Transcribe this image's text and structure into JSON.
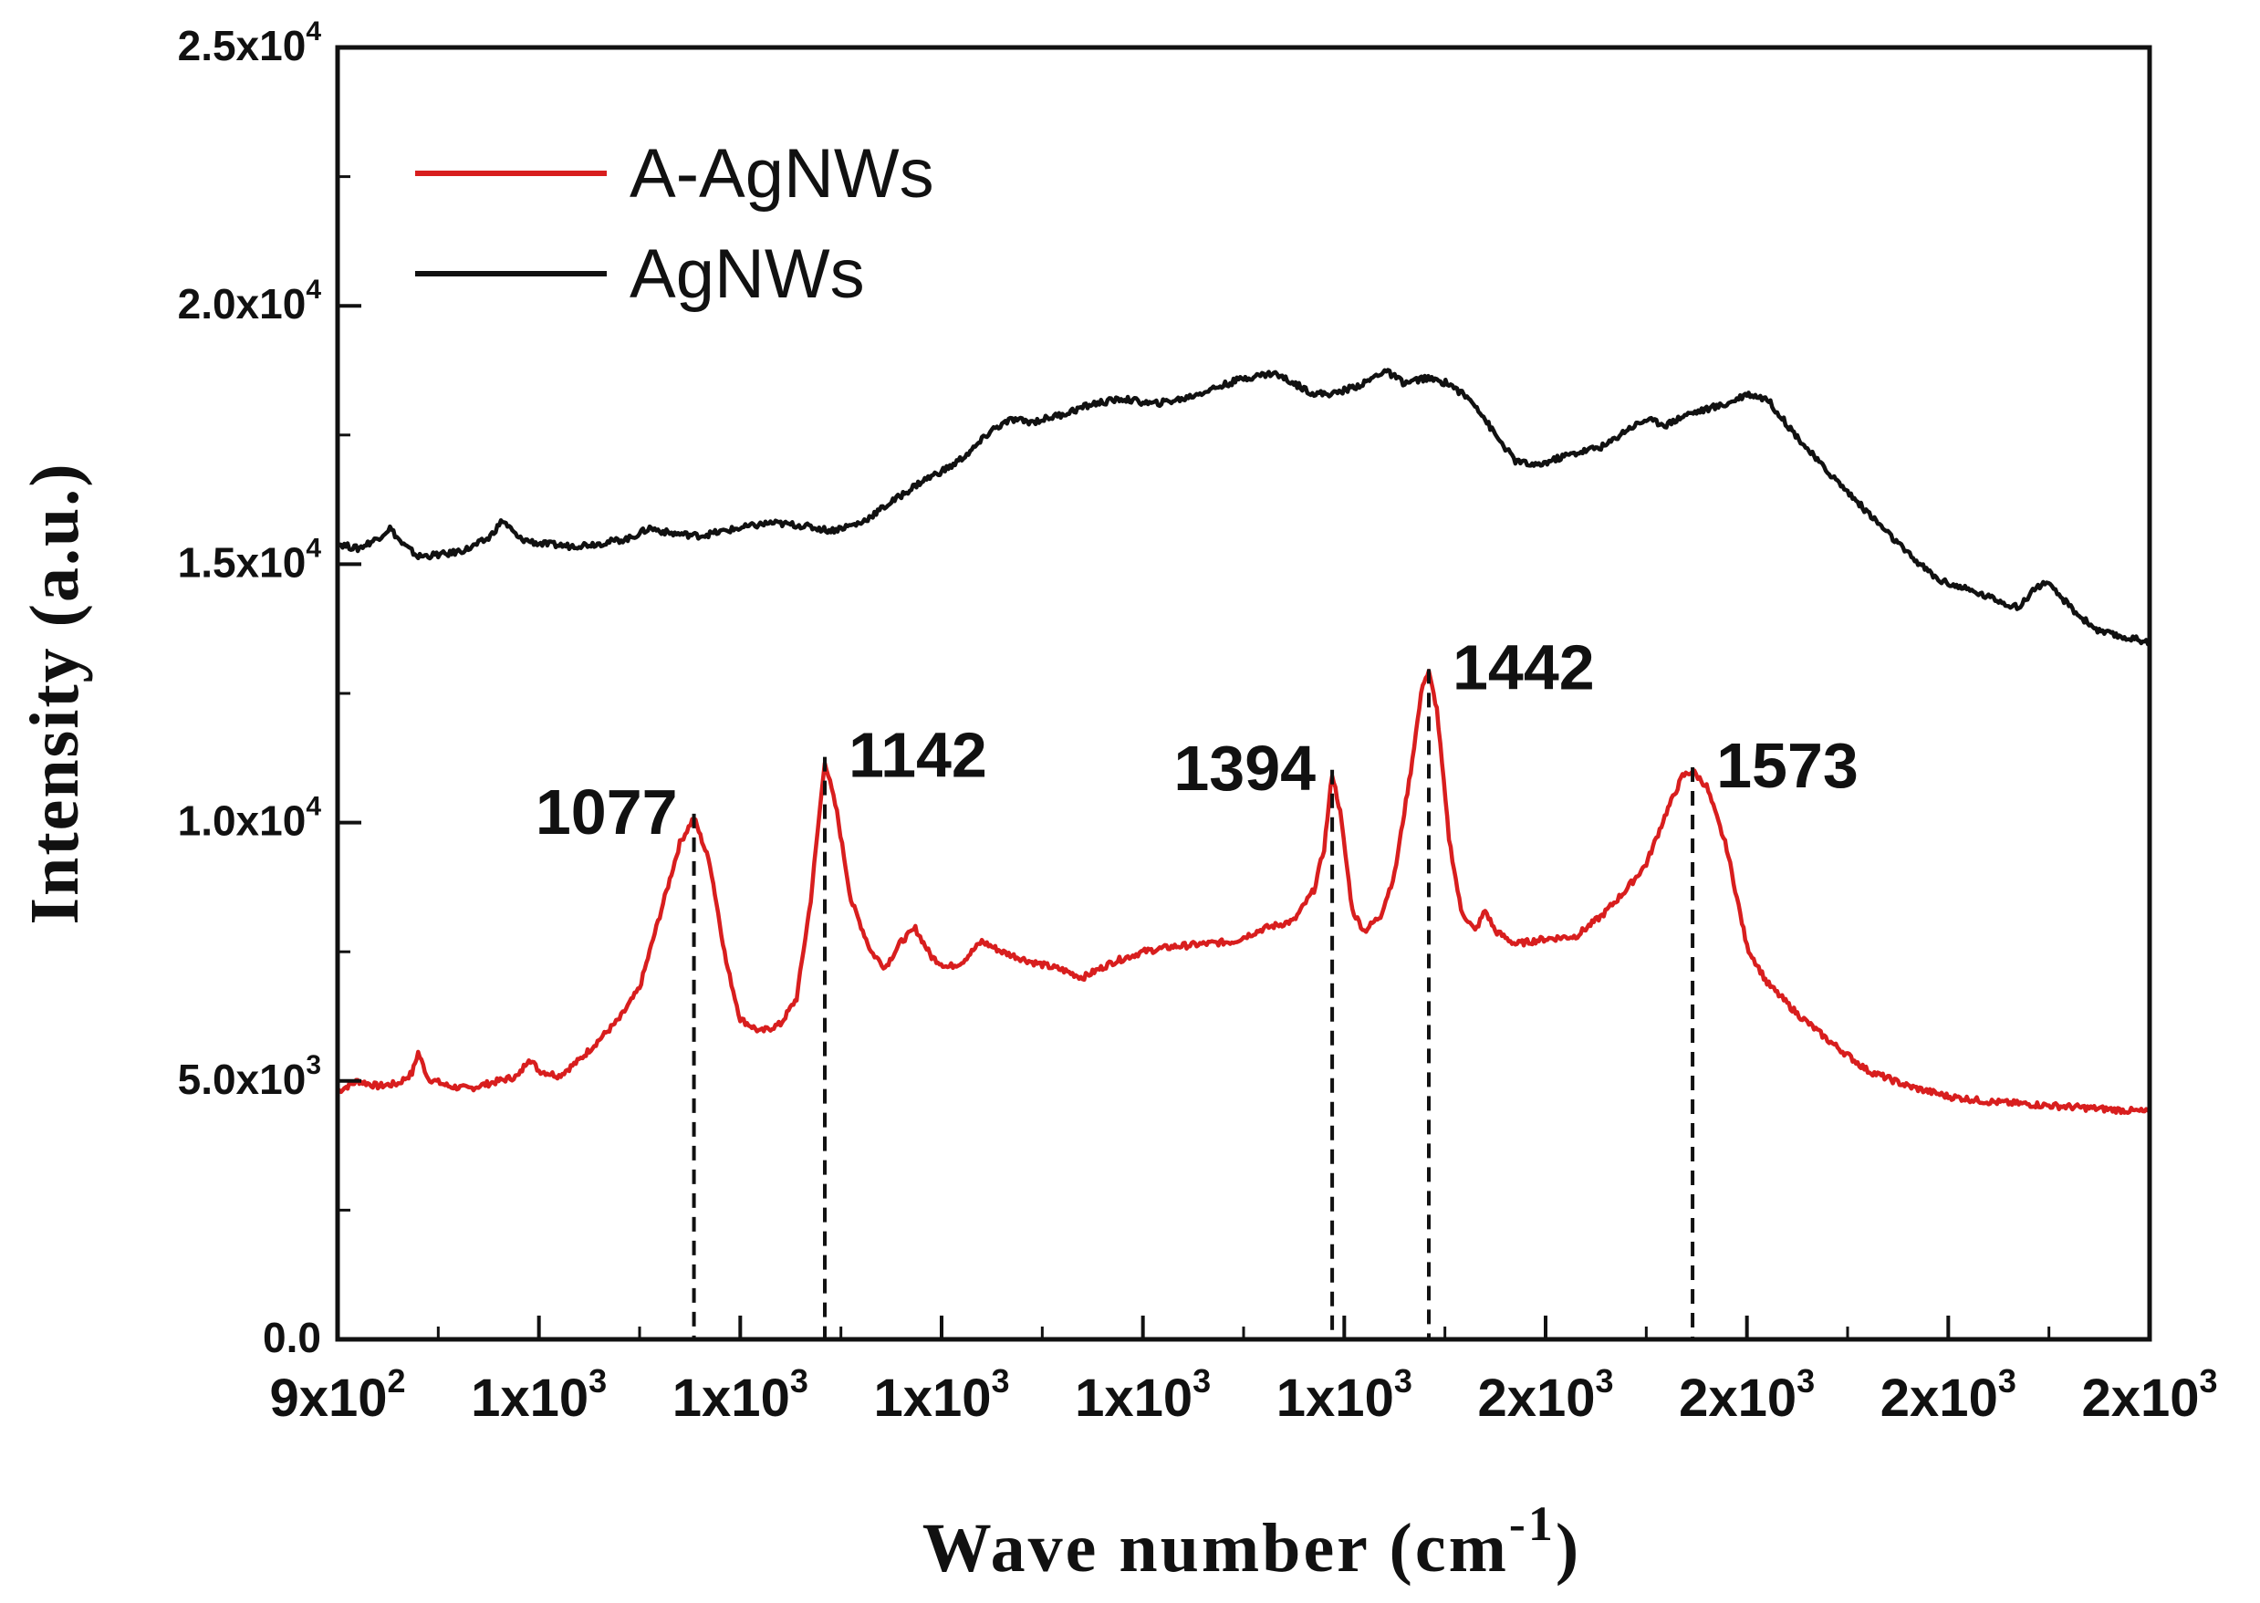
{
  "chart_data": {
    "type": "line",
    "xlabel": "Wave number (cm",
    "xlabel_sup": "-1",
    "xlabel_close": ")",
    "ylabel": "Intensity (a.u.)",
    "xlim": [
      900,
      1800
    ],
    "ylim": [
      0,
      25000
    ],
    "x_ticks": [
      {
        "value": 900,
        "label": "9x10",
        "exp": "2"
      },
      {
        "value": 1000,
        "label": "1x10",
        "exp": "3"
      },
      {
        "value": 1100,
        "label": "1x10",
        "exp": "3"
      },
      {
        "value": 1200,
        "label": "1x10",
        "exp": "3"
      },
      {
        "value": 1300,
        "label": "1x10",
        "exp": "3"
      },
      {
        "value": 1400,
        "label": "1x10",
        "exp": "3"
      },
      {
        "value": 1500,
        "label": "2x10",
        "exp": "3"
      },
      {
        "value": 1600,
        "label": "2x10",
        "exp": "3"
      },
      {
        "value": 1700,
        "label": "2x10",
        "exp": "3"
      },
      {
        "value": 1800,
        "label": "2x10",
        "exp": "3"
      }
    ],
    "y_ticks": [
      {
        "value": 0,
        "label": "0.0",
        "exp": ""
      },
      {
        "value": 5000,
        "label": "5.0x10",
        "exp": "3"
      },
      {
        "value": 10000,
        "label": "1.0x10",
        "exp": "4"
      },
      {
        "value": 15000,
        "label": "1.5x10",
        "exp": "4"
      },
      {
        "value": 20000,
        "label": "2.0x10",
        "exp": "4"
      },
      {
        "value": 25000,
        "label": "2.5x10",
        "exp": "4"
      }
    ],
    "legend_position": "top-left",
    "series": [
      {
        "name": "A-AgNWs",
        "color": "#d81e1e",
        "points": [
          [
            900,
            4800
          ],
          [
            910,
            5000
          ],
          [
            920,
            4900
          ],
          [
            930,
            4950
          ],
          [
            937,
            5150
          ],
          [
            940,
            5550
          ],
          [
            945,
            5050
          ],
          [
            955,
            4900
          ],
          [
            965,
            4850
          ],
          [
            975,
            4950
          ],
          [
            990,
            5100
          ],
          [
            995,
            5450
          ],
          [
            1000,
            5200
          ],
          [
            1010,
            5100
          ],
          [
            1020,
            5400
          ],
          [
            1030,
            5800
          ],
          [
            1040,
            6200
          ],
          [
            1050,
            6800
          ],
          [
            1060,
            8200
          ],
          [
            1070,
            9600
          ],
          [
            1077,
            10100
          ],
          [
            1085,
            9200
          ],
          [
            1093,
            7300
          ],
          [
            1100,
            6200
          ],
          [
            1110,
            5950
          ],
          [
            1120,
            6100
          ],
          [
            1128,
            6600
          ],
          [
            1135,
            8500
          ],
          [
            1142,
            11200
          ],
          [
            1148,
            10200
          ],
          [
            1155,
            8500
          ],
          [
            1165,
            7500
          ],
          [
            1172,
            7200
          ],
          [
            1180,
            7700
          ],
          [
            1187,
            7950
          ],
          [
            1195,
            7400
          ],
          [
            1203,
            7200
          ],
          [
            1210,
            7300
          ],
          [
            1220,
            7700
          ],
          [
            1230,
            7500
          ],
          [
            1245,
            7300
          ],
          [
            1260,
            7150
          ],
          [
            1270,
            7000
          ],
          [
            1285,
            7300
          ],
          [
            1300,
            7500
          ],
          [
            1315,
            7600
          ],
          [
            1330,
            7650
          ],
          [
            1345,
            7700
          ],
          [
            1360,
            7950
          ],
          [
            1375,
            8100
          ],
          [
            1385,
            8700
          ],
          [
            1390,
            9500
          ],
          [
            1394,
            10950
          ],
          [
            1398,
            10200
          ],
          [
            1404,
            8300
          ],
          [
            1410,
            7900
          ],
          [
            1418,
            8200
          ],
          [
            1425,
            9000
          ],
          [
            1433,
            11000
          ],
          [
            1439,
            12700
          ],
          [
            1442,
            12900
          ],
          [
            1446,
            12200
          ],
          [
            1452,
            9700
          ],
          [
            1458,
            8300
          ],
          [
            1465,
            7900
          ],
          [
            1470,
            8300
          ],
          [
            1475,
            7900
          ],
          [
            1485,
            7650
          ],
          [
            1500,
            7750
          ],
          [
            1515,
            7800
          ],
          [
            1528,
            8200
          ],
          [
            1540,
            8700
          ],
          [
            1550,
            9200
          ],
          [
            1560,
            10200
          ],
          [
            1568,
            10900
          ],
          [
            1573,
            11000
          ],
          [
            1580,
            10700
          ],
          [
            1590,
            9500
          ],
          [
            1600,
            7600
          ],
          [
            1610,
            6900
          ],
          [
            1625,
            6300
          ],
          [
            1640,
            5800
          ],
          [
            1660,
            5200
          ],
          [
            1680,
            4900
          ],
          [
            1700,
            4700
          ],
          [
            1720,
            4600
          ],
          [
            1740,
            4550
          ],
          [
            1760,
            4500
          ],
          [
            1780,
            4450
          ],
          [
            1800,
            4400
          ]
        ]
      },
      {
        "name": "AgNWs",
        "color": "#111111",
        "points": [
          [
            900,
            15400
          ],
          [
            910,
            15300
          ],
          [
            920,
            15500
          ],
          [
            926,
            15700
          ],
          [
            932,
            15400
          ],
          [
            940,
            15150
          ],
          [
            955,
            15200
          ],
          [
            965,
            15300
          ],
          [
            975,
            15500
          ],
          [
            982,
            15850
          ],
          [
            990,
            15500
          ],
          [
            1000,
            15400
          ],
          [
            1015,
            15350
          ],
          [
            1030,
            15400
          ],
          [
            1045,
            15500
          ],
          [
            1055,
            15700
          ],
          [
            1065,
            15600
          ],
          [
            1080,
            15550
          ],
          [
            1100,
            15700
          ],
          [
            1115,
            15800
          ],
          [
            1130,
            15750
          ],
          [
            1145,
            15650
          ],
          [
            1160,
            15800
          ],
          [
            1175,
            16200
          ],
          [
            1190,
            16600
          ],
          [
            1205,
            16900
          ],
          [
            1215,
            17200
          ],
          [
            1225,
            17600
          ],
          [
            1235,
            17800
          ],
          [
            1245,
            17750
          ],
          [
            1260,
            17900
          ],
          [
            1275,
            18100
          ],
          [
            1290,
            18200
          ],
          [
            1305,
            18100
          ],
          [
            1320,
            18200
          ],
          [
            1335,
            18400
          ],
          [
            1350,
            18600
          ],
          [
            1365,
            18700
          ],
          [
            1375,
            18500
          ],
          [
            1385,
            18300
          ],
          [
            1395,
            18300
          ],
          [
            1410,
            18500
          ],
          [
            1420,
            18750
          ],
          [
            1430,
            18500
          ],
          [
            1440,
            18600
          ],
          [
            1452,
            18500
          ],
          [
            1465,
            18100
          ],
          [
            1475,
            17500
          ],
          [
            1485,
            17000
          ],
          [
            1495,
            16900
          ],
          [
            1510,
            17100
          ],
          [
            1520,
            17200
          ],
          [
            1530,
            17300
          ],
          [
            1540,
            17600
          ],
          [
            1550,
            17800
          ],
          [
            1560,
            17700
          ],
          [
            1570,
            17900
          ],
          [
            1580,
            18000
          ],
          [
            1590,
            18100
          ],
          [
            1600,
            18300
          ],
          [
            1610,
            18200
          ],
          [
            1620,
            17700
          ],
          [
            1635,
            17000
          ],
          [
            1650,
            16400
          ],
          [
            1665,
            15800
          ],
          [
            1680,
            15200
          ],
          [
            1695,
            14700
          ],
          [
            1710,
            14500
          ],
          [
            1725,
            14300
          ],
          [
            1735,
            14150
          ],
          [
            1742,
            14500
          ],
          [
            1748,
            14650
          ],
          [
            1755,
            14400
          ],
          [
            1765,
            14000
          ],
          [
            1775,
            13700
          ],
          [
            1785,
            13600
          ],
          [
            1800,
            13500
          ]
        ]
      }
    ],
    "annotations": [
      {
        "x": 1077,
        "peak": 10100,
        "label": "1077",
        "side": "left"
      },
      {
        "x": 1142,
        "peak": 11200,
        "label": "1142",
        "side": "right"
      },
      {
        "x": 1394,
        "peak": 10950,
        "label": "1394",
        "side": "left"
      },
      {
        "x": 1442,
        "peak": 12900,
        "label": "1442",
        "side": "right"
      },
      {
        "x": 1573,
        "peak": 11000,
        "label": "1573",
        "side": "right"
      }
    ]
  }
}
